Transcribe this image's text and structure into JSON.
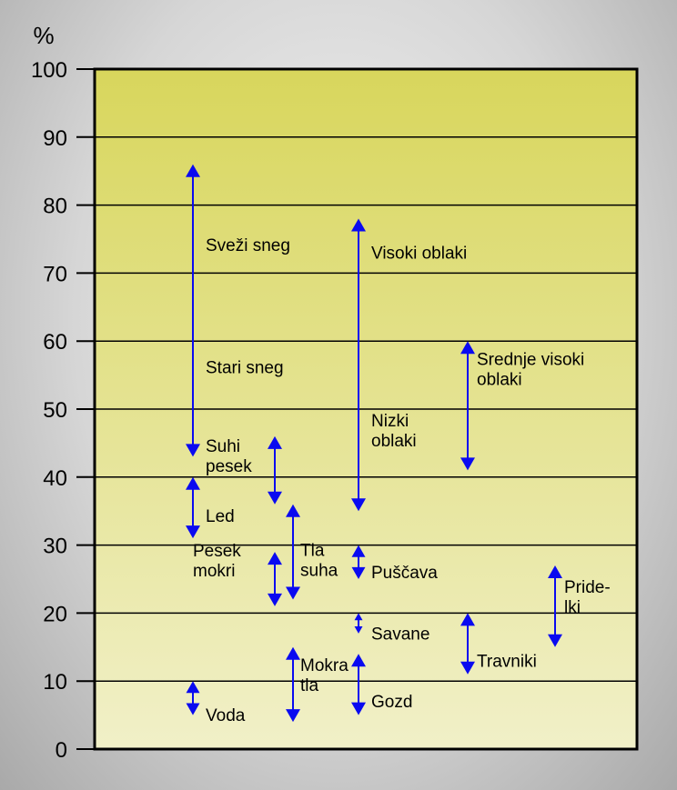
{
  "chart_data": {
    "type": "range",
    "ylabel": "%",
    "ylim": [
      0,
      100
    ],
    "yticks": [
      0,
      10,
      20,
      30,
      40,
      50,
      60,
      70,
      80,
      90,
      100
    ],
    "grid": true,
    "colors": {
      "arrow": "#0a0af0",
      "plot_top": "#d8d65c",
      "plot_bottom": "#f1f0c8",
      "axis": "#000000"
    },
    "ranges": [
      {
        "column": 1,
        "min": 43,
        "max": 86,
        "labels": [
          {
            "text": [
              "Sveži sneg"
            ],
            "y": 73
          },
          {
            "text": [
              "Stari sneg"
            ],
            "y": 55
          }
        ]
      },
      {
        "column": 1,
        "min": 31,
        "max": 40,
        "labels": [
          {
            "text": [
              "Led"
            ],
            "y": 35
          }
        ]
      },
      {
        "column": 1,
        "min": 5,
        "max": 10,
        "labels": [
          {
            "text": [
              "Voda"
            ],
            "y": 6
          }
        ]
      },
      {
        "column": 2,
        "min": 36,
        "max": 46,
        "labels": [
          {
            "text": [
              "Suhi",
              "pesek"
            ],
            "y": 42.5
          }
        ]
      },
      {
        "column": 2,
        "min": 21,
        "max": 29,
        "labels": [
          {
            "text": [
              "Pesek",
              "mokri"
            ],
            "y": 25
          }
        ]
      },
      {
        "column": 3,
        "min": 22,
        "max": 36,
        "labels": [
          {
            "text": [
              "Tla",
              "suha"
            ],
            "y": 27.5
          }
        ]
      },
      {
        "column": 3,
        "min": 4,
        "max": 15,
        "labels": [
          {
            "text": [
              "Mokra",
              "tla"
            ],
            "y": 10
          }
        ]
      },
      {
        "column": 4,
        "min": 35,
        "max": 78,
        "labels": [
          {
            "text": [
              "Visoki oblaki"
            ],
            "y": 74
          },
          {
            "text": [
              "Nizki",
              "oblaki"
            ],
            "y": 46
          }
        ]
      },
      {
        "column": 4,
        "min": 25,
        "max": 30,
        "labels": [
          {
            "text": [
              "Puščava"
            ],
            "y": 27
          }
        ]
      },
      {
        "column": 4,
        "min": 17,
        "max": 20,
        "labels": [
          {
            "text": [
              "Savane"
            ],
            "y": 18
          }
        ]
      },
      {
        "column": 4,
        "min": 5,
        "max": 14,
        "labels": [
          {
            "text": [
              "Gozd"
            ],
            "y": 8
          }
        ]
      },
      {
        "column": 5,
        "min": 41,
        "max": 60,
        "labels": [
          {
            "text": [
              "Srednje visoki",
              "oblaki"
            ],
            "y": 55
          }
        ]
      },
      {
        "column": 5,
        "min": 11,
        "max": 20,
        "labels": [
          {
            "text": [
              "Travniki"
            ],
            "y": 14
          }
        ]
      },
      {
        "column": 6,
        "min": 15,
        "max": 27,
        "labels": [
          {
            "text": [
              "Pride-",
              "lki"
            ],
            "y": 21.5
          }
        ]
      }
    ]
  }
}
